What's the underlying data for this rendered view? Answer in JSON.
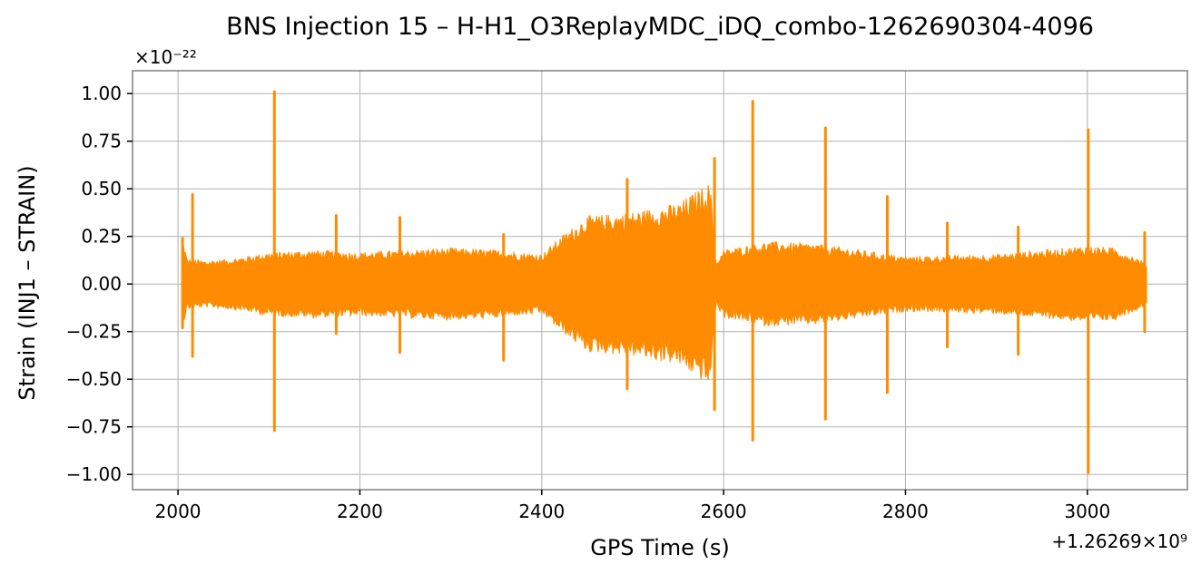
{
  "chart_data": {
    "type": "line",
    "title": "BNS Injection 15 – H-H1_O3ReplayMDC_iDQ_combo-1262690304-4096",
    "xlabel": "GPS Time (s)",
    "ylabel": "Strain (INJ1 – STRAIN)",
    "x_offset_label": "+1.26269×10⁹",
    "y_scale_label": "×10⁻²²",
    "xlim": [
      1950,
      3110
    ],
    "ylim": [
      -1.08,
      1.12
    ],
    "x_ticks": [
      2000,
      2200,
      2400,
      2600,
      2800,
      3000
    ],
    "x_tick_labels": [
      "2000",
      "2200",
      "2400",
      "2600",
      "2800",
      "3000"
    ],
    "y_ticks": [
      -1.0,
      -0.75,
      -0.5,
      -0.25,
      0.0,
      0.25,
      0.5,
      0.75,
      1.0
    ],
    "y_tick_labels": [
      "−1.00",
      "−0.75",
      "−0.50",
      "−0.25",
      "0.00",
      "0.25",
      "0.50",
      "0.75",
      "1.00"
    ],
    "grid": true,
    "series": [
      {
        "color": "#ff8c00",
        "envelope": {
          "x": [
            2004,
            2010,
            2030,
            2060,
            2100,
            2150,
            2200,
            2300,
            2350,
            2400,
            2420,
            2450,
            2500,
            2550,
            2585,
            2592,
            2600,
            2650,
            2700,
            2800,
            2900,
            3000,
            3030,
            3066
          ],
          "upper": [
            0.24,
            0.12,
            0.11,
            0.12,
            0.15,
            0.16,
            0.15,
            0.17,
            0.16,
            0.14,
            0.22,
            0.32,
            0.34,
            0.38,
            0.48,
            0.1,
            0.16,
            0.2,
            0.19,
            0.13,
            0.14,
            0.18,
            0.17,
            0.1
          ],
          "lower": [
            -0.22,
            -0.12,
            -0.11,
            -0.12,
            -0.15,
            -0.16,
            -0.15,
            -0.17,
            -0.16,
            -0.14,
            -0.22,
            -0.32,
            -0.34,
            -0.38,
            -0.48,
            -0.1,
            -0.16,
            -0.2,
            -0.19,
            -0.13,
            -0.14,
            -0.18,
            -0.17,
            -0.1
          ]
        },
        "spikes": [
          {
            "x": 2005,
            "max": 0.24,
            "min": -0.23
          },
          {
            "x": 2016,
            "max": 0.47,
            "min": -0.38
          },
          {
            "x": 2106,
            "max": 1.01,
            "min": -0.77
          },
          {
            "x": 2174,
            "max": 0.36,
            "min": -0.26
          },
          {
            "x": 2244,
            "max": 0.35,
            "min": -0.36
          },
          {
            "x": 2358,
            "max": 0.26,
            "min": -0.4
          },
          {
            "x": 2494,
            "max": 0.55,
            "min": -0.55
          },
          {
            "x": 2590,
            "max": 0.66,
            "min": -0.66
          },
          {
            "x": 2632,
            "max": 0.96,
            "min": -0.82
          },
          {
            "x": 2712,
            "max": 0.82,
            "min": -0.71
          },
          {
            "x": 2780,
            "max": 0.46,
            "min": -0.57
          },
          {
            "x": 2846,
            "max": 0.32,
            "min": -0.33
          },
          {
            "x": 2924,
            "max": 0.3,
            "min": -0.37
          },
          {
            "x": 3001,
            "max": 0.81,
            "min": -0.99
          },
          {
            "x": 3063,
            "max": 0.27,
            "min": -0.25
          }
        ]
      }
    ]
  }
}
